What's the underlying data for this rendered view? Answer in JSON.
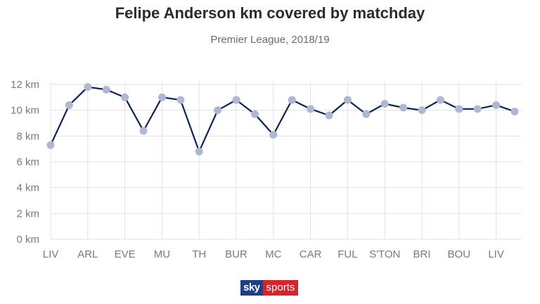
{
  "title": "Felipe Anderson km covered by matchday",
  "subtitle": "Premier League, 2018/19",
  "brand": {
    "sky": "sky",
    "sports": "sports"
  },
  "colors": {
    "line": "#0f2156",
    "marker": "#aeb8d0",
    "grid": "#e2e2e2",
    "brand_blue": "#1d3f8a",
    "brand_red": "#d3262c"
  },
  "chart_data": {
    "type": "line",
    "title": "Felipe Anderson km covered by matchday",
    "subtitle": "Premier League, 2018/19",
    "xlabel": "",
    "ylabel": "",
    "ylim": [
      0,
      12
    ],
    "yticks": [
      0,
      2,
      4,
      6,
      8,
      10,
      12
    ],
    "ytick_labels": [
      "0 km",
      "2 km",
      "4 km",
      "6 km",
      "8 km",
      "10 km",
      "12 km"
    ],
    "grid": true,
    "x": [
      1,
      2,
      3,
      4,
      5,
      6,
      7,
      8,
      9,
      10,
      11,
      12,
      13,
      14,
      15,
      16,
      17,
      18,
      19,
      20,
      21,
      22,
      23,
      24,
      25,
      26
    ],
    "x_tick_positions": [
      1,
      3,
      5,
      7,
      9,
      11,
      13,
      15,
      17,
      19,
      21,
      23,
      25
    ],
    "x_tick_labels": [
      "LIV",
      "ARL",
      "EVE",
      "MU",
      "TH",
      "BUR",
      "MC",
      "CAR",
      "FUL",
      "S'TON",
      "BRI",
      "BOU",
      "LIV"
    ],
    "series": [
      {
        "values": [
          7.3,
          10.4,
          11.8,
          11.6,
          11.0,
          8.4,
          11.0,
          10.8,
          6.8,
          10.0,
          10.8,
          9.7,
          8.1,
          10.8,
          10.1,
          9.6,
          10.8,
          9.7,
          10.5,
          10.2,
          10.0,
          10.8,
          10.1,
          10.1,
          10.4,
          9.9
        ]
      }
    ]
  }
}
